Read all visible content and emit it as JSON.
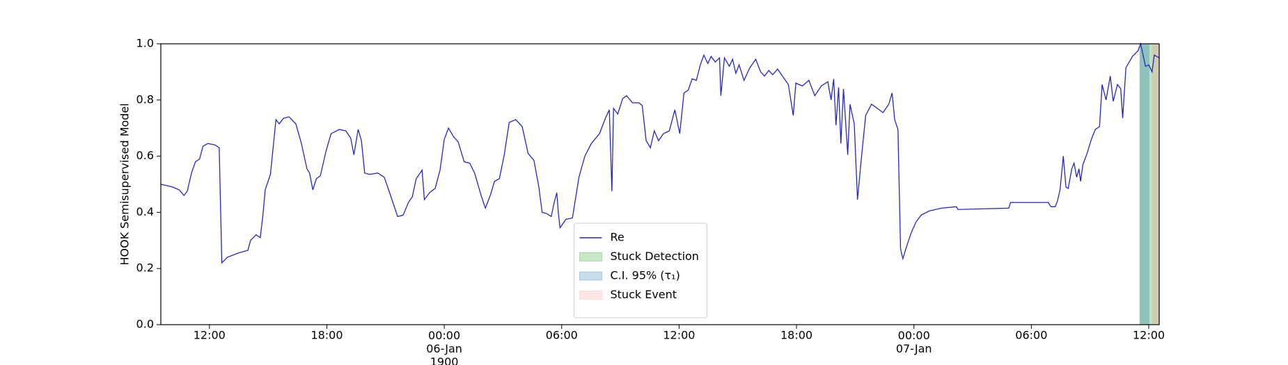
{
  "chart_data": {
    "type": "line",
    "ylabel": "HOOK Semisupervised Model",
    "x": [
      "1900-01-05 09:31",
      "1900-01-05 10:07",
      "1900-01-05 10:27",
      "1900-01-05 10:42",
      "1900-01-05 10:52",
      "1900-01-05 11:05",
      "1900-01-05 11:17",
      "1900-01-05 11:30",
      "1900-01-05 11:40",
      "1900-01-05 11:55",
      "1900-01-05 12:17",
      "1900-01-05 12:30",
      "1900-01-05 12:38",
      "1900-01-05 12:55",
      "1900-01-05 13:28",
      "1900-01-05 13:58",
      "1900-01-05 14:06",
      "1900-01-05 14:23",
      "1900-01-05 14:36",
      "1900-01-05 14:44",
      "1900-01-05 14:51",
      "1900-01-05 15:07",
      "1900-01-05 15:24",
      "1900-01-05 15:34",
      "1900-01-05 15:47",
      "1900-01-05 16:04",
      "1900-01-05 16:25",
      "1900-01-05 16:42",
      "1900-01-05 16:59",
      "1900-01-05 17:07",
      "1900-01-05 17:17",
      "1900-01-05 17:28",
      "1900-01-05 17:40",
      "1900-01-05 17:58",
      "1900-01-05 18:13",
      "1900-01-05 18:38",
      "1900-01-05 18:58",
      "1900-01-05 19:13",
      "1900-01-05 19:23",
      "1900-01-05 19:36",
      "1900-01-05 19:46",
      "1900-01-05 19:56",
      "1900-01-05 20:11",
      "1900-01-05 20:36",
      "1900-01-05 20:56",
      "1900-01-05 21:11",
      "1900-01-05 21:37",
      "1900-01-05 21:54",
      "1900-01-05 22:10",
      "1900-01-05 22:22",
      "1900-01-05 22:34",
      "1900-01-05 22:52",
      "1900-01-05 22:59",
      "1900-01-05 23:15",
      "1900-01-05 23:32",
      "1900-01-05 23:47",
      "1900-01-06 00:00",
      "1900-01-06 00:13",
      "1900-01-06 00:28",
      "1900-01-06 00:43",
      "1900-01-06 01:01",
      "1900-01-06 01:18",
      "1900-01-06 01:33",
      "1900-01-06 01:53",
      "1900-01-06 02:06",
      "1900-01-06 02:21",
      "1900-01-06 02:34",
      "1900-01-06 02:49",
      "1900-01-06 03:04",
      "1900-01-06 03:19",
      "1900-01-06 03:39",
      "1900-01-06 03:59",
      "1900-01-06 04:17",
      "1900-01-06 04:35",
      "1900-01-06 04:50",
      "1900-01-06 05:00",
      "1900-01-06 05:15",
      "1900-01-06 05:28",
      "1900-01-06 05:37",
      "1900-01-06 05:45",
      "1900-01-06 05:50",
      "1900-01-06 05:55",
      "1900-01-06 06:13",
      "1900-01-06 06:33",
      "1900-01-06 06:53",
      "1900-01-06 07:11",
      "1900-01-06 07:31",
      "1900-01-06 07:56",
      "1900-01-06 08:14",
      "1900-01-06 08:26",
      "1900-01-06 08:34",
      "1900-01-06 08:39",
      "1900-01-06 08:52",
      "1900-01-06 09:07",
      "1900-01-06 09:19",
      "1900-01-06 09:37",
      "1900-01-06 09:57",
      "1900-01-06 10:07",
      "1900-01-06 10:19",
      "1900-01-06 10:32",
      "1900-01-06 10:44",
      "1900-01-06 10:57",
      "1900-01-06 11:12",
      "1900-01-06 11:30",
      "1900-01-06 11:47",
      "1900-01-06 12:02",
      "1900-01-06 12:15",
      "1900-01-06 12:28",
      "1900-01-06 12:40",
      "1900-01-06 12:53",
      "1900-01-06 13:05",
      "1900-01-06 13:16",
      "1900-01-06 13:28",
      "1900-01-06 13:38",
      "1900-01-06 13:51",
      "1900-01-06 14:04",
      "1900-01-06 14:08",
      "1900-01-06 14:19",
      "1900-01-06 14:34",
      "1900-01-06 14:44",
      "1900-01-06 14:54",
      "1900-01-06 15:04",
      "1900-01-06 15:19",
      "1900-01-06 15:37",
      "1900-01-06 15:55",
      "1900-01-06 16:10",
      "1900-01-06 16:22",
      "1900-01-06 16:35",
      "1900-01-06 16:47",
      "1900-01-06 17:02",
      "1900-01-06 17:17",
      "1900-01-06 17:35",
      "1900-01-06 17:50",
      "1900-01-06 17:58",
      "1900-01-06 18:18",
      "1900-01-06 18:38",
      "1900-01-06 18:56",
      "1900-01-06 19:16",
      "1900-01-06 19:36",
      "1900-01-06 19:46",
      "1900-01-06 19:54",
      "1900-01-06 20:01",
      "1900-01-06 20:09",
      "1900-01-06 20:16",
      "1900-01-06 20:24",
      "1900-01-06 20:37",
      "1900-01-06 20:44",
      "1900-01-06 20:57",
      "1900-01-06 21:07",
      "1900-01-06 21:17",
      "1900-01-06 21:32",
      "1900-01-06 21:50",
      "1900-01-06 22:08",
      "1900-01-06 22:25",
      "1900-01-06 22:43",
      "1900-01-06 22:53",
      "1900-01-06 23:01",
      "1900-01-06 23:11",
      "1900-01-06 23:19",
      "1900-01-06 23:26",
      "1900-01-06 23:38",
      "1900-01-06 23:51",
      "1900-01-07 00:06",
      "1900-01-07 00:22",
      "1900-01-07 00:47",
      "1900-01-07 01:25",
      "1900-01-07 02:10",
      "1900-01-07 02:15",
      "1900-01-07 04:51",
      "1900-01-07 04:56",
      "1900-01-07 06:52",
      "1900-01-07 07:00",
      "1900-01-07 07:13",
      "1900-01-07 07:20",
      "1900-01-07 07:28",
      "1900-01-07 07:38",
      "1900-01-07 07:46",
      "1900-01-07 07:53",
      "1900-01-07 08:04",
      "1900-01-07 08:11",
      "1900-01-07 08:19",
      "1900-01-07 08:26",
      "1900-01-07 08:31",
      "1900-01-07 08:38",
      "1900-01-07 08:51",
      "1900-01-07 09:04",
      "1900-01-07 09:16",
      "1900-01-07 09:29",
      "1900-01-07 09:37",
      "1900-01-07 09:49",
      "1900-01-07 10:02",
      "1900-01-07 10:11",
      "1900-01-07 10:24",
      "1900-01-07 10:34",
      "1900-01-07 10:40",
      "1900-01-07 10:50",
      "1900-01-07 11:10",
      "1900-01-07 11:27",
      "1900-01-07 11:35",
      "1900-01-07 11:50",
      "1900-01-07 12:00",
      "1900-01-07 12:10",
      "1900-01-07 12:17",
      "1900-01-07 12:32"
    ],
    "series": [
      {
        "name": "Re",
        "color": "#2424c8",
        "values": [
          0.5,
          0.49,
          0.48,
          0.46,
          0.475,
          0.54,
          0.58,
          0.59,
          0.635,
          0.645,
          0.64,
          0.63,
          0.22,
          0.24,
          0.255,
          0.265,
          0.3,
          0.32,
          0.31,
          0.39,
          0.48,
          0.535,
          0.73,
          0.715,
          0.735,
          0.74,
          0.715,
          0.645,
          0.555,
          0.54,
          0.48,
          0.52,
          0.53,
          0.62,
          0.68,
          0.695,
          0.69,
          0.665,
          0.605,
          0.695,
          0.655,
          0.54,
          0.535,
          0.54,
          0.525,
          0.475,
          0.385,
          0.39,
          0.435,
          0.455,
          0.52,
          0.55,
          0.445,
          0.47,
          0.485,
          0.55,
          0.66,
          0.7,
          0.67,
          0.65,
          0.58,
          0.575,
          0.54,
          0.46,
          0.415,
          0.46,
          0.51,
          0.52,
          0.605,
          0.72,
          0.73,
          0.705,
          0.61,
          0.585,
          0.49,
          0.4,
          0.395,
          0.385,
          0.435,
          0.47,
          0.395,
          0.345,
          0.375,
          0.38,
          0.525,
          0.6,
          0.645,
          0.68,
          0.735,
          0.765,
          0.475,
          0.77,
          0.75,
          0.805,
          0.815,
          0.79,
          0.79,
          0.78,
          0.655,
          0.63,
          0.69,
          0.655,
          0.68,
          0.69,
          0.765,
          0.68,
          0.825,
          0.835,
          0.875,
          0.87,
          0.925,
          0.96,
          0.93,
          0.955,
          0.935,
          0.95,
          0.815,
          0.95,
          0.92,
          0.945,
          0.895,
          0.925,
          0.87,
          0.915,
          0.945,
          0.9,
          0.885,
          0.905,
          0.89,
          0.91,
          0.885,
          0.855,
          0.745,
          0.86,
          0.85,
          0.87,
          0.815,
          0.85,
          0.865,
          0.8,
          0.875,
          0.71,
          0.845,
          0.645,
          0.84,
          0.605,
          0.785,
          0.715,
          0.445,
          0.57,
          0.745,
          0.785,
          0.77,
          0.755,
          0.785,
          0.825,
          0.73,
          0.695,
          0.27,
          0.235,
          0.28,
          0.325,
          0.365,
          0.39,
          0.405,
          0.415,
          0.42,
          0.41,
          0.415,
          0.435,
          0.435,
          0.42,
          0.42,
          0.44,
          0.48,
          0.6,
          0.49,
          0.485,
          0.555,
          0.575,
          0.525,
          0.555,
          0.51,
          0.57,
          0.61,
          0.66,
          0.695,
          0.705,
          0.855,
          0.8,
          0.885,
          0.795,
          0.855,
          0.84,
          0.735,
          0.915,
          0.955,
          0.975,
          1.0,
          0.92,
          0.925,
          0.9,
          0.96,
          0.95
        ]
      }
    ],
    "spans": [
      {
        "name": "Stuck Detection",
        "color": "#2ca02c",
        "start": "1900-01-07 11:32",
        "end": "1900-01-07 12:32"
      },
      {
        "name": "C.I. 95% (τ₁)",
        "color": "#1f77b4",
        "start": "1900-01-07 11:32",
        "end": "1900-01-07 12:02"
      },
      {
        "name": "Stuck Event",
        "color": "#ff9896",
        "start": "1900-01-07 12:10",
        "end": "1900-01-07 12:32"
      }
    ],
    "xlim": [
      "1900-01-05 09:31",
      "1900-01-07 12:32"
    ],
    "xticks": [
      {
        "value": "1900-01-05 12:00",
        "label": "12:00"
      },
      {
        "value": "1900-01-05 18:00",
        "label": "18:00"
      },
      {
        "value": "1900-01-06 00:00",
        "label": "00:00\n06-Jan\n1900"
      },
      {
        "value": "1900-01-06 06:00",
        "label": "06:00"
      },
      {
        "value": "1900-01-06 12:00",
        "label": "12:00"
      },
      {
        "value": "1900-01-06 18:00",
        "label": "18:00"
      },
      {
        "value": "1900-01-07 00:00",
        "label": "00:00\n07-Jan"
      },
      {
        "value": "1900-01-07 06:00",
        "label": "06:00"
      },
      {
        "value": "1900-01-07 12:00",
        "label": "12:00"
      }
    ],
    "ylim": [
      0,
      1
    ],
    "yticks": [
      {
        "value": 0,
        "label": "0.0"
      },
      {
        "value": 0.2,
        "label": "0.2"
      },
      {
        "value": 0.4,
        "label": "0.4"
      },
      {
        "value": 0.6,
        "label": "0.6"
      },
      {
        "value": 0.8,
        "label": "0.8"
      },
      {
        "value": 1,
        "label": "1.0"
      }
    ],
    "legend": "lower center"
  }
}
